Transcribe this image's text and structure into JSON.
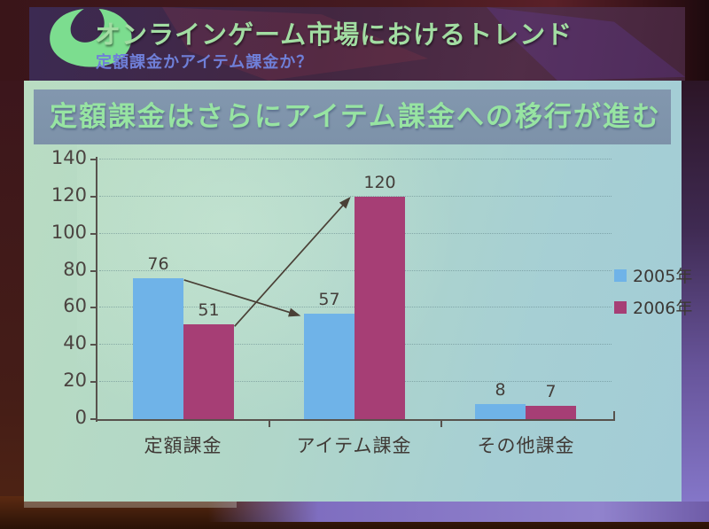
{
  "header": {
    "title": "オンラインゲーム市場におけるトレンド",
    "subtitle": "定額課金かアイテム課金か？",
    "logo": "green-blob-logo",
    "title_color": "#a2dda2",
    "subtitle_color": "#6f7fd8",
    "band_color": "#432741"
  },
  "slide": {
    "title": "定額課金はさらにアイテム課金への移行が進む",
    "title_text_color": "#97e4a2",
    "title_band_color": "#8095ab",
    "panel_color": "#aed4cb"
  },
  "chart_data": {
    "type": "bar",
    "title": "",
    "xlabel": "",
    "ylabel": "",
    "categories": [
      "定額課金",
      "アイテム課金",
      "その他課金"
    ],
    "series": [
      {
        "name": "2005年",
        "color": "#6fb3e8",
        "values": [
          76,
          57,
          8
        ]
      },
      {
        "name": "2006年",
        "color": "#a63e75",
        "values": [
          51,
          120,
          7
        ]
      }
    ],
    "ylim": [
      0,
      140
    ],
    "yticks": [
      0,
      20,
      40,
      60,
      80,
      100,
      120,
      140
    ],
    "grid": "horizontal-dotted",
    "legend_position": "right",
    "value_labels": true,
    "annotations": [
      {
        "type": "arrow",
        "meaning": "2005年 定額課金からアイテム課金へ移行",
        "from": {
          "category": 0,
          "series": 0
        },
        "to": {
          "category": 1,
          "series": 0
        }
      },
      {
        "type": "arrow",
        "meaning": "2006年 定額課金からアイテム課金へ移行",
        "from": {
          "category": 0,
          "series": 1
        },
        "to": {
          "category": 1,
          "series": 1
        }
      }
    ],
    "axis_color": "#57524d",
    "gridline_color": "#6d9498"
  }
}
